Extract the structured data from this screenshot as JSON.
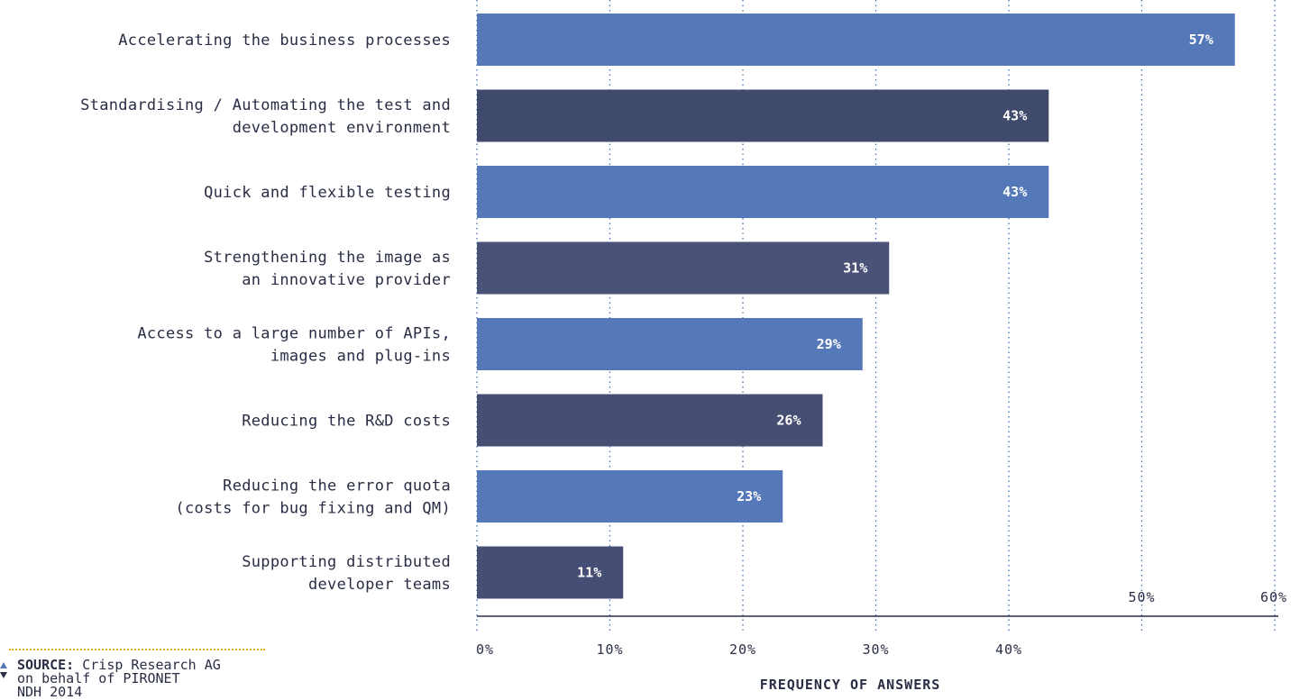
{
  "chart_data": {
    "type": "bar",
    "orientation": "horizontal",
    "categories": [
      [
        "Accelerating the business processes"
      ],
      [
        "Standardising / Automating the test and",
        "development environment"
      ],
      [
        "Quick and flexible testing"
      ],
      [
        "Strengthening the image as",
        "an innovative provider"
      ],
      [
        "Access to a large number of APIs,",
        "images and plug-ins"
      ],
      [
        "Reducing the R&D costs"
      ],
      [
        "Reducing the error quota",
        "(costs for bug fixing and QM)"
      ],
      [
        "Supporting distributed",
        "developer teams"
      ]
    ],
    "values": [
      57,
      43,
      43,
      31,
      29,
      26,
      23,
      11
    ],
    "value_labels": [
      "57%",
      "43%",
      "43%",
      "31%",
      "29%",
      "26%",
      "23%",
      "11%"
    ],
    "colors": [
      "#5578b8",
      "#404a6c",
      "#5578b8",
      "#4a5278",
      "#5578b8",
      "#464e74",
      "#5578b8",
      "#464e74"
    ],
    "xticks": [
      0,
      10,
      20,
      30,
      40,
      50,
      60
    ],
    "xtick_labels": [
      "0%",
      "10%",
      "20%",
      "30%",
      "40%",
      "50%",
      "60%"
    ],
    "xlim": [
      0,
      60
    ],
    "xlabel": "FREQUENCY OF ANSWERS",
    "grid": "vertical dotted",
    "axis_color": "#2a2e45",
    "grid_color": "#3f6fb5"
  },
  "source": {
    "key": "SOURCE:",
    "line1": "Crisp Research AG",
    "line2": "on behalf of PIRONET",
    "line3": "NDH 2014"
  }
}
